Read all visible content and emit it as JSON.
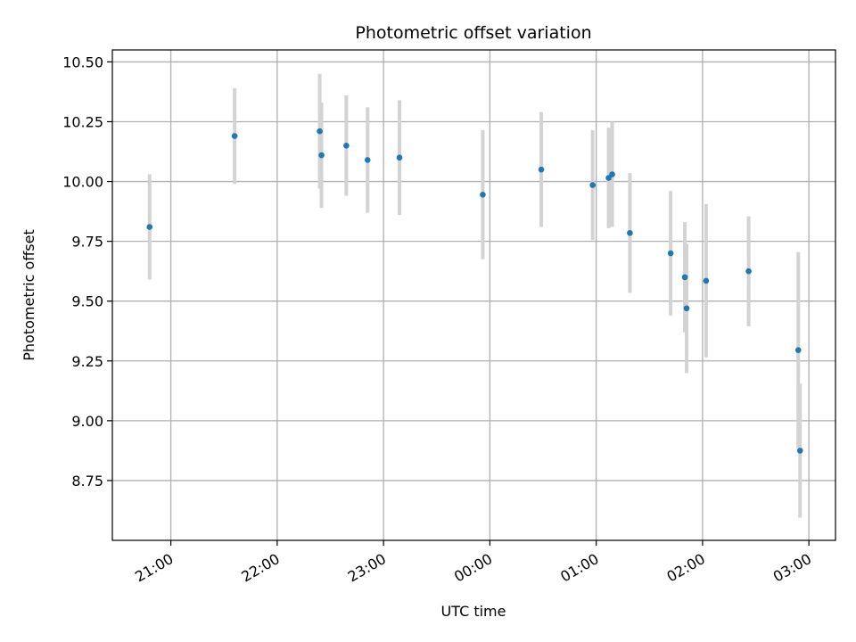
{
  "chart_data": {
    "type": "scatter",
    "title": "Photometric offset variation",
    "xlabel": "UTC time",
    "ylabel": "Photometric offset",
    "x_axis_kind": "time",
    "x_ticks": [
      "21:00",
      "22:00",
      "23:00",
      "00:00",
      "01:00",
      "02:00",
      "03:00"
    ],
    "y_ticks": [
      "8.75",
      "9.00",
      "9.25",
      "9.50",
      "9.75",
      "10.00",
      "10.25",
      "10.50"
    ],
    "xlim": [
      "20:27",
      "03:15"
    ],
    "ylim": [
      8.5,
      10.55
    ],
    "grid": true,
    "colors": {
      "point": "#1f77b4",
      "errorbar": "#d3d3d3",
      "grid": "#b0b0b0"
    },
    "points": [
      {
        "x": "20:48",
        "y": 9.81,
        "err": 0.22
      },
      {
        "x": "21:36",
        "y": 10.19,
        "err": 0.2
      },
      {
        "x": "22:24",
        "y": 10.21,
        "err": 0.24
      },
      {
        "x": "22:25",
        "y": 10.11,
        "err": 0.22
      },
      {
        "x": "22:39",
        "y": 10.15,
        "err": 0.21
      },
      {
        "x": "22:51",
        "y": 10.09,
        "err": 0.22
      },
      {
        "x": "23:09",
        "y": 10.1,
        "err": 0.24
      },
      {
        "x": "23:56",
        "y": 9.945,
        "err": 0.27
      },
      {
        "x": "00:29",
        "y": 10.05,
        "err": 0.24
      },
      {
        "x": "00:58",
        "y": 9.985,
        "err": 0.23
      },
      {
        "x": "01:07",
        "y": 10.015,
        "err": 0.21
      },
      {
        "x": "01:09",
        "y": 10.03,
        "err": 0.22
      },
      {
        "x": "01:19",
        "y": 9.785,
        "err": 0.25
      },
      {
        "x": "01:42",
        "y": 9.7,
        "err": 0.26
      },
      {
        "x": "01:50",
        "y": 9.6,
        "err": 0.23
      },
      {
        "x": "01:51",
        "y": 9.47,
        "err": 0.27
      },
      {
        "x": "02:02",
        "y": 9.585,
        "err": 0.32
      },
      {
        "x": "02:26",
        "y": 9.625,
        "err": 0.23
      },
      {
        "x": "02:54",
        "y": 9.295,
        "err": 0.41
      },
      {
        "x": "02:55",
        "y": 8.875,
        "err": 0.28
      }
    ]
  }
}
